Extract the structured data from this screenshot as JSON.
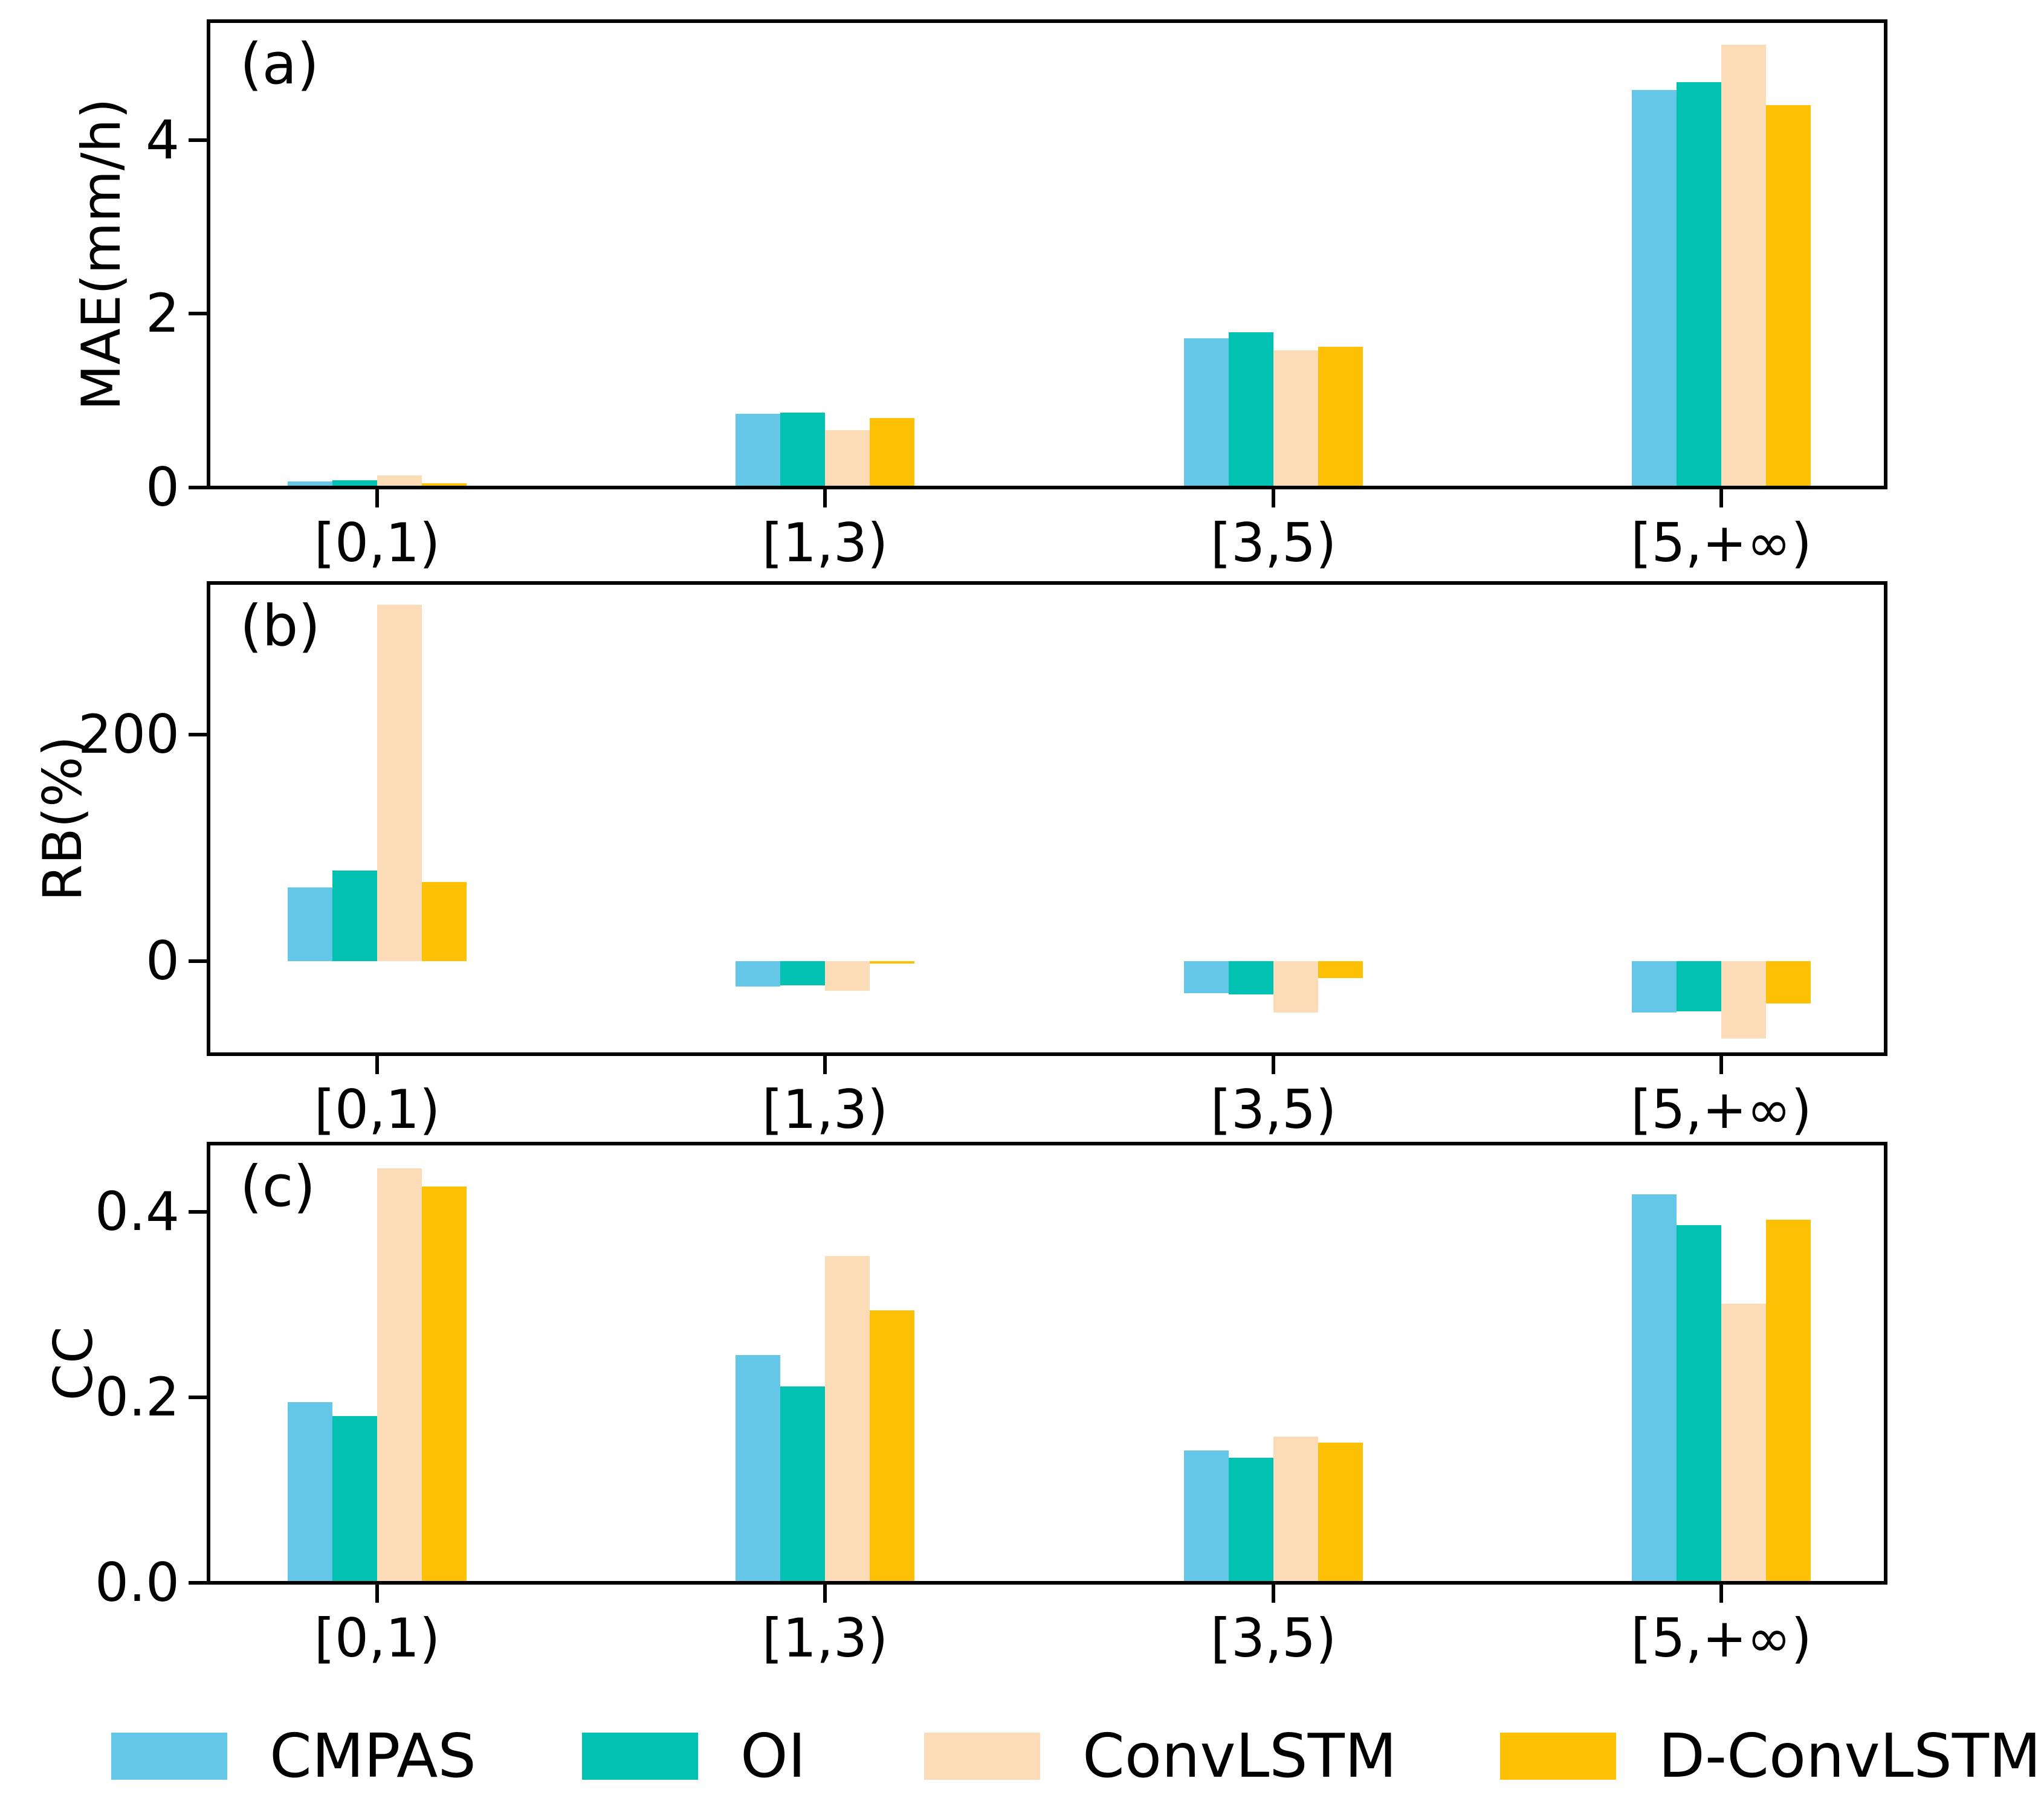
{
  "figure": {
    "background": "#ffffff",
    "description": "Three stacked grouped bar chart panels comparing precipitation products by rain-rate bin"
  },
  "chart_data": [
    {
      "type": "bar",
      "panel_label": "(a)",
      "ylabel": "MAE(mm/h)",
      "xlabel": "",
      "categories": [
        "[0,1)",
        "[1,3)",
        "[3,5)",
        "[5,+∞)"
      ],
      "series": [
        {
          "name": "CMPAS",
          "color": "#64C7E8",
          "values": [
            0.07,
            0.85,
            1.72,
            4.58
          ]
        },
        {
          "name": "OI",
          "color": "#00C1B2",
          "values": [
            0.08,
            0.86,
            1.79,
            4.67
          ]
        },
        {
          "name": "ConvLSTM",
          "color": "#FCDCB6",
          "values": [
            0.14,
            0.66,
            1.58,
            5.1
          ]
        },
        {
          "name": "D-ConvLSTM",
          "color": "#FDC004",
          "values": [
            0.05,
            0.8,
            1.62,
            4.4
          ]
        }
      ],
      "ylim": [
        0,
        5.37
      ],
      "yticks": [
        {
          "value": 0,
          "label": "0"
        },
        {
          "value": 2,
          "label": "2"
        },
        {
          "value": 4,
          "label": "4"
        }
      ],
      "grid": false
    },
    {
      "type": "bar",
      "panel_label": "(b)",
      "ylabel": "RB(%)",
      "xlabel": "",
      "categories": [
        "[0,1)",
        "[1,3)",
        "[3,5)",
        "[5,+∞)"
      ],
      "series": [
        {
          "name": "CMPAS",
          "color": "#64C7E8",
          "values": [
            65,
            -22,
            -28,
            -45
          ]
        },
        {
          "name": "OI",
          "color": "#00C1B2",
          "values": [
            80,
            -21,
            -29,
            -44
          ]
        },
        {
          "name": "ConvLSTM",
          "color": "#FCDCB6",
          "values": [
            315,
            -26,
            -45,
            -68
          ]
        },
        {
          "name": "D-ConvLSTM",
          "color": "#FDC004",
          "values": [
            70,
            -2,
            -15,
            -37
          ]
        }
      ],
      "ylim": [
        -82,
        334
      ],
      "yticks": [
        {
          "value": 0,
          "label": "0"
        },
        {
          "value": 200,
          "label": "200"
        }
      ],
      "grid": false
    },
    {
      "type": "bar",
      "panel_label": "(c)",
      "ylabel": "CC",
      "xlabel": "",
      "categories": [
        "[0,1)",
        "[1,3)",
        "[3,5)",
        "[5,+∞)"
      ],
      "series": [
        {
          "name": "CMPAS",
          "color": "#64C7E8",
          "values": [
            0.195,
            0.246,
            0.143,
            0.419
          ]
        },
        {
          "name": "OI",
          "color": "#00C1B2",
          "values": [
            0.18,
            0.212,
            0.135,
            0.386
          ]
        },
        {
          "name": "ConvLSTM",
          "color": "#FCDCB6",
          "values": [
            0.447,
            0.353,
            0.158,
            0.301
          ]
        },
        {
          "name": "D-ConvLSTM",
          "color": "#FDC004",
          "values": [
            0.428,
            0.294,
            0.151,
            0.392
          ]
        }
      ],
      "ylim": [
        0,
        0.474
      ],
      "yticks": [
        {
          "value": 0.0,
          "label": "0.0"
        },
        {
          "value": 0.2,
          "label": "0.2"
        },
        {
          "value": 0.4,
          "label": "0.4"
        }
      ],
      "grid": false
    }
  ],
  "legend": {
    "position": "bottom",
    "items": [
      {
        "label": "CMPAS",
        "color": "#64C7E8"
      },
      {
        "label": "OI",
        "color": "#00C1B2"
      },
      {
        "label": "ConvLSTM",
        "color": "#FCDCB6"
      },
      {
        "label": "D-ConvLSTM",
        "color": "#FDC004"
      }
    ]
  }
}
